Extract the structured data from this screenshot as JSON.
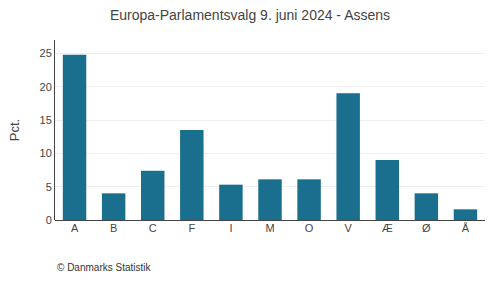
{
  "chart_data": {
    "type": "bar",
    "title": "Europa-Parlamentsvalg 9. juni 2024 - Assens",
    "ylabel": "Pct.",
    "annotations": [
      "© Danmarks Statistik"
    ],
    "categories": [
      "A",
      "B",
      "C",
      "F",
      "I",
      "M",
      "O",
      "V",
      "Æ",
      "Ø",
      "Å"
    ],
    "values": [
      24.8,
      4.0,
      7.4,
      13.5,
      5.3,
      6.1,
      6.1,
      19.0,
      9.0,
      4.0,
      1.6
    ],
    "color": "#1a6e8e",
    "ylim": [
      0,
      27
    ],
    "yticks": [
      0,
      5,
      10,
      15,
      20,
      25
    ],
    "grid": true
  }
}
